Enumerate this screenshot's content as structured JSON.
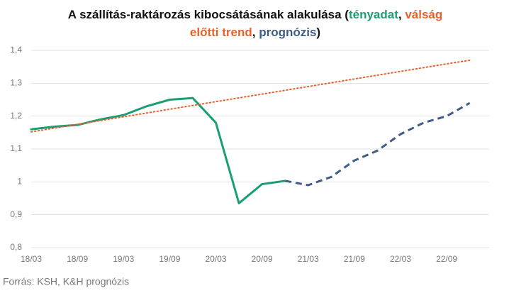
{
  "chart_data": {
    "type": "line",
    "title_lines": [
      [
        {
          "text": "A szállítás-raktározás kibocsátásának alakulása (",
          "color": "#111111"
        },
        {
          "text": "tényadat",
          "color": "#1a9e76"
        },
        {
          "text": ", ",
          "color": "#111111"
        },
        {
          "text": "válság",
          "color": "#e8612c"
        }
      ],
      [
        {
          "text": "előtti trend",
          "color": "#e8612c"
        },
        {
          "text": ", ",
          "color": "#111111"
        },
        {
          "text": "prognózis",
          "color": "#3e5c86"
        },
        {
          "text": ")",
          "color": "#111111"
        }
      ]
    ],
    "categories": [
      "18/03",
      null,
      "18/09",
      null,
      "19/03",
      null,
      "19/09",
      null,
      "20/03",
      null,
      "20/09",
      null,
      "21/03",
      null,
      "21/09",
      null,
      "22/03",
      null,
      "22/09",
      null
    ],
    "series": [
      {
        "name": "tényadat",
        "color": "#1a9e76",
        "style": "solid",
        "values": [
          1.16,
          1.168,
          1.173,
          1.19,
          1.203,
          1.23,
          1.25,
          1.255,
          1.18,
          0.935,
          0.993,
          1.003,
          null,
          null,
          null,
          null,
          null,
          null,
          null,
          null
        ]
      },
      {
        "name": "válság előtti trend",
        "color": "#e8612c",
        "style": "dotted",
        "values": [
          1.152,
          1.1635,
          1.175,
          1.1865,
          1.198,
          1.2095,
          1.221,
          1.2325,
          1.244,
          1.2555,
          1.267,
          1.2785,
          1.29,
          1.3015,
          1.313,
          1.3245,
          1.336,
          1.3475,
          1.359,
          1.37
        ]
      },
      {
        "name": "prognózis",
        "color": "#3e5c86",
        "style": "dashed",
        "values": [
          null,
          null,
          null,
          null,
          null,
          null,
          null,
          null,
          null,
          null,
          null,
          1.003,
          0.99,
          1.015,
          1.065,
          1.095,
          1.145,
          1.18,
          1.2,
          1.24
        ]
      }
    ],
    "ylim": [
      0.8,
      1.4
    ],
    "yticks": [
      {
        "value": 0.8,
        "label": "0,8"
      },
      {
        "value": 0.9,
        "label": "0,9"
      },
      1,
      {
        "value": 1.1,
        "label": "1,1"
      },
      {
        "value": 1.2,
        "label": "1,2"
      },
      {
        "value": 1.3,
        "label": "1,3"
      },
      {
        "value": 1.4,
        "label": "1,4"
      }
    ],
    "grid": true,
    "source": "Forrás: KSH, K&H prognózis"
  }
}
